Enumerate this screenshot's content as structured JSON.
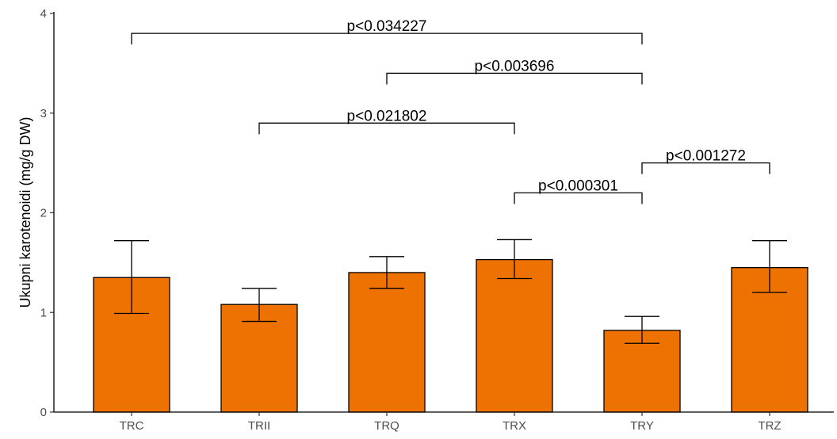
{
  "chart_data": {
    "type": "bar",
    "title": "",
    "xlabel": "",
    "ylabel": "Ukupni karotenoidi (mg/g DW)",
    "ylim": [
      0,
      4
    ],
    "yticks": [
      "0",
      "1",
      "2",
      "3",
      "4"
    ],
    "categories": [
      "TRC",
      "TRII",
      "TRQ",
      "TRX",
      "TRY",
      "TRZ"
    ],
    "values": [
      1.35,
      1.08,
      1.4,
      1.53,
      0.82,
      1.45
    ],
    "error_low": [
      0.99,
      0.91,
      1.24,
      1.34,
      0.69,
      1.2
    ],
    "error_high": [
      1.72,
      1.24,
      1.56,
      1.73,
      0.96,
      1.72
    ],
    "bar_color": "#EE7202",
    "bar_edge_color": "#000000",
    "grid": false,
    "legend": "none",
    "comparisons": [
      {
        "from": "TRC",
        "to": "TRY",
        "level": 3.8,
        "label": "p<0.034227"
      },
      {
        "from": "TRQ",
        "to": "TRY",
        "level": 3.4,
        "label": "p<0.003696"
      },
      {
        "from": "TRII",
        "to": "TRX",
        "level": 2.9,
        "label": "p<0.021802"
      },
      {
        "from": "TRX",
        "to": "TRY",
        "level": 2.2,
        "label": "p<0.000301"
      },
      {
        "from": "TRY",
        "to": "TRZ",
        "level": 2.5,
        "label": "p<0.001272"
      }
    ]
  }
}
